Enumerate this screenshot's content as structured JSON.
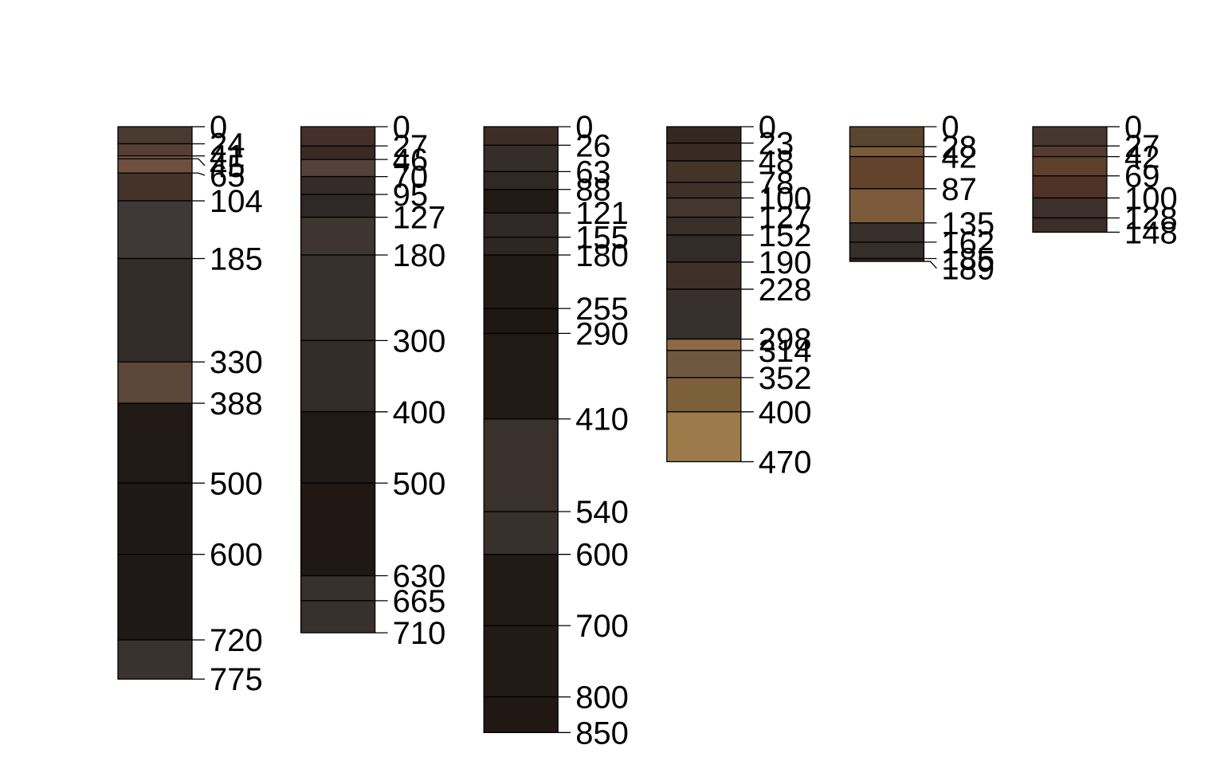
{
  "chart_data": {
    "type": "soil-profile",
    "title": "",
    "xlabel": "",
    "ylabel": "",
    "depth_range": [
      0,
      850
    ],
    "grid": false,
    "legend": "none",
    "profiles": [
      {
        "depths": [
          0,
          24,
          41,
          45,
          65,
          104,
          185,
          330,
          388,
          500,
          600,
          720,
          775
        ],
        "labels": [
          "0",
          "24",
          "41",
          "45",
          "65",
          "104",
          "185",
          "330",
          "388",
          "500",
          "600",
          "720",
          "775"
        ],
        "colors": [
          "#4A3A30",
          "#553F33",
          "#7A5A46",
          "#6E5040",
          "#433328",
          "#3E3836",
          "#342C29",
          "#5A4739",
          "#211915",
          "#201816",
          "#1F1816",
          "#3A322E"
        ]
      },
      {
        "depths": [
          0,
          27,
          46,
          70,
          95,
          127,
          180,
          300,
          400,
          500,
          630,
          665,
          710
        ],
        "labels": [
          "0",
          "27",
          "46",
          "70",
          "95",
          "127",
          "180",
          "300",
          "400",
          "500",
          "630",
          "665",
          "710"
        ],
        "colors": [
          "#44302A",
          "#3A2A24",
          "#53413A",
          "#342C29",
          "#302826",
          "#3E3531",
          "#38302C",
          "#342C28",
          "#221A16",
          "#211814",
          "#38302C",
          "#38302C"
        ]
      },
      {
        "depths": [
          0,
          26,
          63,
          88,
          121,
          155,
          180,
          255,
          290,
          410,
          540,
          600,
          700,
          800,
          850
        ],
        "labels": [
          "0",
          "26",
          "63",
          "88",
          "121",
          "155",
          "180",
          "255",
          "290",
          "410",
          "540",
          "600",
          "700",
          "800",
          "850"
        ],
        "colors": [
          "#3D2D26",
          "#352D2A",
          "#302825",
          "#211915",
          "#302826",
          "#2E2623",
          "#221A16",
          "#1E1713",
          "#211915",
          "#3A302C",
          "#37302C",
          "#211915",
          "#221A17",
          "#211816"
        ]
      },
      {
        "depths": [
          0,
          23,
          48,
          78,
          100,
          127,
          152,
          190,
          228,
          298,
          314,
          352,
          400,
          470
        ],
        "labels": [
          "0",
          "23",
          "48",
          "78",
          "100",
          "127",
          "152",
          "190",
          "228",
          "298",
          "314",
          "352",
          "400",
          "470"
        ],
        "colors": [
          "#352822",
          "#3A2B22",
          "#423428",
          "#3F3129",
          "#43362E",
          "#383029",
          "#332B27",
          "#3F3128",
          "#37302C",
          "#8E6A44",
          "#6F5840",
          "#7C603A",
          "#9C7A4A"
        ]
      },
      {
        "depths": [
          0,
          28,
          42,
          87,
          135,
          162,
          185,
          189
        ],
        "labels": [
          "0",
          "28",
          "42",
          "87",
          "135",
          "162",
          "185",
          "189"
        ],
        "colors": [
          "#5A4630",
          "#7A5C38",
          "#63432C",
          "#7C5A3C",
          "#38302C",
          "#362E2A",
          "#2E2624"
        ]
      },
      {
        "depths": [
          0,
          27,
          42,
          69,
          100,
          128,
          148
        ],
        "labels": [
          "0",
          "27",
          "42",
          "69",
          "100",
          "128",
          "148"
        ],
        "colors": [
          "#473730",
          "#543D30",
          "#5E412C",
          "#4E3426",
          "#3E302A",
          "#3C2F29"
        ]
      }
    ]
  }
}
